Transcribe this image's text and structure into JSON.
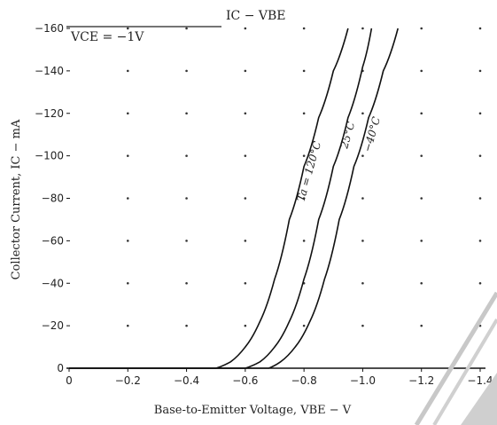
{
  "chart_data": {
    "type": "line",
    "title": "IC − VBE",
    "subtitle": "VCE = −1V",
    "xlabel": "Base-to-Emitter Voltage, VBE − V",
    "ylabel": "Collector Current, IC − mA",
    "xlim": [
      0,
      -1.4
    ],
    "ylim": [
      0,
      -160
    ],
    "x_ticks": [
      0,
      -0.2,
      -0.4,
      -0.6,
      -0.8,
      -1.0,
      -1.2,
      -1.4
    ],
    "x_tick_labels": [
      "0",
      "−0.2",
      "−0.4",
      "−0.6",
      "−0.8",
      "−1.0",
      "−1.2",
      "−1.4"
    ],
    "y_ticks": [
      0,
      -20,
      -40,
      -60,
      -80,
      -100,
      -120,
      -140,
      -160
    ],
    "y_tick_labels": [
      "0",
      "−20",
      "−40",
      "−60",
      "−80",
      "−100",
      "−120",
      "−140",
      "−160"
    ],
    "grid": "dotted",
    "series": [
      {
        "name": "Ta = 120°C",
        "x": [
          -0.5,
          -0.55,
          -0.6,
          -0.65,
          -0.7,
          -0.75,
          -0.8,
          -0.85,
          -0.9,
          -0.95
        ],
        "y": [
          0,
          -3,
          -10,
          -22,
          -42,
          -70,
          -95,
          -118,
          -140,
          -160
        ]
      },
      {
        "name": "25°C",
        "x": [
          -0.6,
          -0.65,
          -0.7,
          -0.75,
          -0.8,
          -0.85,
          -0.9,
          -0.95,
          -1.0,
          -1.03
        ],
        "y": [
          0,
          -3,
          -10,
          -22,
          -42,
          -70,
          -95,
          -118,
          -142,
          -160
        ]
      },
      {
        "name": "−40°C",
        "x": [
          -0.68,
          -0.72,
          -0.77,
          -0.82,
          -0.87,
          -0.92,
          -0.97,
          -1.02,
          -1.07,
          -1.12
        ],
        "y": [
          0,
          -3,
          -10,
          -22,
          -42,
          -70,
          -95,
          -118,
          -140,
          -160
        ]
      }
    ]
  }
}
